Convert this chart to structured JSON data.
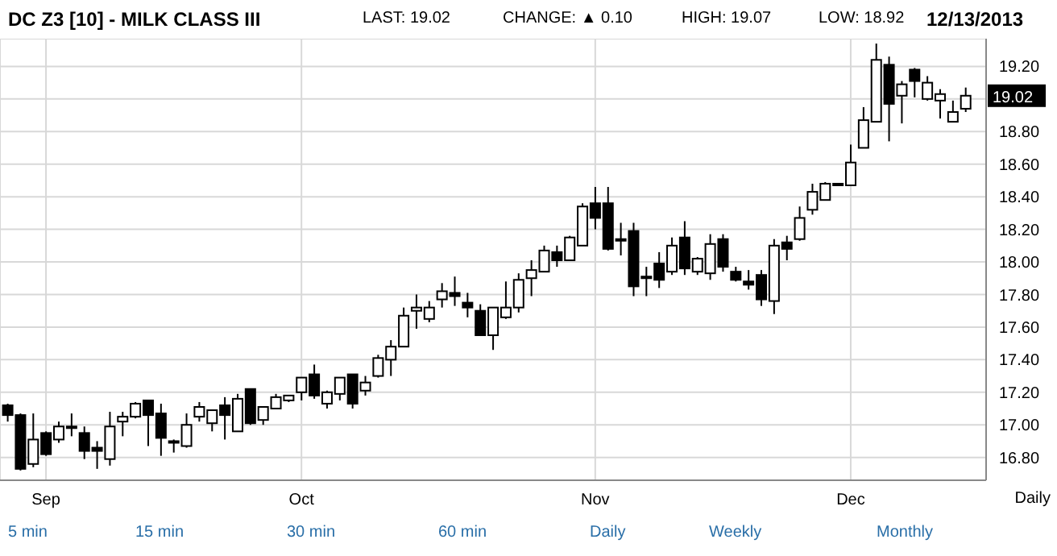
{
  "chart_data": {
    "type": "candlestick",
    "title": "DC Z3 [10] - MILK CLASS III",
    "xlabel": "Daily",
    "annotations": [
      "LAST: 19.02",
      "CHANGE: ▲ 0.10",
      "HIGH: 19.07",
      "LOW: 18.92",
      "12/13/2013",
      "19.02",
      "5 min",
      "15 min",
      "30 min",
      "60 min",
      "Daily",
      "Weekly",
      "Monthly"
    ],
    "categories": [
      null,
      null,
      null,
      "Sep",
      null,
      null,
      null,
      null,
      null,
      null,
      null,
      null,
      null,
      null,
      null,
      null,
      null,
      null,
      null,
      null,
      null,
      null,
      null,
      "Oct",
      null,
      null,
      null,
      null,
      null,
      null,
      null,
      null,
      null,
      null,
      null,
      null,
      null,
      null,
      null,
      null,
      null,
      null,
      null,
      null,
      null,
      null,
      "Nov",
      null,
      null,
      null,
      null,
      null,
      null,
      null,
      null,
      null,
      null,
      null,
      null,
      null,
      null,
      null,
      null,
      null,
      null,
      null,
      "Dec",
      null,
      null,
      null,
      null,
      null,
      null,
      null,
      null,
      null
    ],
    "ohlc": [
      [
        17.12,
        17.13,
        17.02,
        17.06
      ],
      [
        17.06,
        17.07,
        16.72,
        16.73
      ],
      [
        16.76,
        17.07,
        16.74,
        16.91
      ],
      [
        16.95,
        16.96,
        16.81,
        16.82
      ],
      [
        16.91,
        17.02,
        16.89,
        16.99
      ],
      [
        16.99,
        17.07,
        16.93,
        16.98
      ],
      [
        16.95,
        16.99,
        16.79,
        16.84
      ],
      [
        16.86,
        16.9,
        16.73,
        16.84
      ],
      [
        16.79,
        17.08,
        16.75,
        16.99
      ],
      [
        17.02,
        17.08,
        16.93,
        17.05
      ],
      [
        17.05,
        17.14,
        17.04,
        17.13
      ],
      [
        17.15,
        17.15,
        16.87,
        17.06
      ],
      [
        17.07,
        17.13,
        16.81,
        16.92
      ],
      [
        16.9,
        16.91,
        16.83,
        16.89
      ],
      [
        16.87,
        17.07,
        16.86,
        17.0
      ],
      [
        17.05,
        17.14,
        17.02,
        17.11
      ],
      [
        17.01,
        17.09,
        16.96,
        17.09
      ],
      [
        17.12,
        17.17,
        16.91,
        17.06
      ],
      [
        16.96,
        17.19,
        16.96,
        17.16
      ],
      [
        17.22,
        17.22,
        17.0,
        17.01
      ],
      [
        17.03,
        17.11,
        17.0,
        17.11
      ],
      [
        17.1,
        17.19,
        17.1,
        17.17
      ],
      [
        17.15,
        17.18,
        17.14,
        17.18
      ],
      [
        17.2,
        17.29,
        17.15,
        17.29
      ],
      [
        17.31,
        17.37,
        17.16,
        17.18
      ],
      [
        17.13,
        17.21,
        17.1,
        17.2
      ],
      [
        17.19,
        17.29,
        17.15,
        17.29
      ],
      [
        17.31,
        17.31,
        17.1,
        17.13
      ],
      [
        17.21,
        17.3,
        17.18,
        17.26
      ],
      [
        17.3,
        17.43,
        17.29,
        17.41
      ],
      [
        17.4,
        17.52,
        17.3,
        17.48
      ],
      [
        17.48,
        17.72,
        17.48,
        17.67
      ],
      [
        17.7,
        17.8,
        17.59,
        17.72
      ],
      [
        17.65,
        17.76,
        17.63,
        17.72
      ],
      [
        17.77,
        17.87,
        17.72,
        17.82
      ],
      [
        17.81,
        17.91,
        17.73,
        17.79
      ],
      [
        17.75,
        17.81,
        17.66,
        17.72
      ],
      [
        17.7,
        17.74,
        17.55,
        17.55
      ],
      [
        17.55,
        17.72,
        17.46,
        17.72
      ],
      [
        17.66,
        17.88,
        17.65,
        17.72
      ],
      [
        17.72,
        17.93,
        17.69,
        17.89
      ],
      [
        17.9,
        18.01,
        17.79,
        17.95
      ],
      [
        17.94,
        18.1,
        17.94,
        18.07
      ],
      [
        18.06,
        18.1,
        17.97,
        18.01
      ],
      [
        18.01,
        18.16,
        18.01,
        18.15
      ],
      [
        18.1,
        18.36,
        18.1,
        18.34
      ],
      [
        18.36,
        18.46,
        18.2,
        18.27
      ],
      [
        18.36,
        18.46,
        18.07,
        18.08
      ],
      [
        18.14,
        18.24,
        18.04,
        18.13
      ],
      [
        18.19,
        18.24,
        17.79,
        17.85
      ],
      [
        17.91,
        17.97,
        17.79,
        17.9
      ],
      [
        17.99,
        18.06,
        17.84,
        17.89
      ],
      [
        17.94,
        18.15,
        17.92,
        18.1
      ],
      [
        18.15,
        18.25,
        17.92,
        17.96
      ],
      [
        17.94,
        18.03,
        17.92,
        18.02
      ],
      [
        17.93,
        18.17,
        17.89,
        18.11
      ],
      [
        18.14,
        18.17,
        17.94,
        17.97
      ],
      [
        17.94,
        17.97,
        17.88,
        17.89
      ],
      [
        17.88,
        17.95,
        17.83,
        17.86
      ],
      [
        17.92,
        17.95,
        17.73,
        17.77
      ],
      [
        17.76,
        18.14,
        17.68,
        18.1
      ],
      [
        18.12,
        18.16,
        18.01,
        18.08
      ],
      [
        18.14,
        18.34,
        18.13,
        18.27
      ],
      [
        18.32,
        18.48,
        18.29,
        18.43
      ],
      [
        18.38,
        18.49,
        18.38,
        18.48
      ],
      [
        18.48,
        18.48,
        18.47,
        18.47
      ],
      [
        18.47,
        18.72,
        18.47,
        18.61
      ],
      [
        18.7,
        18.95,
        18.7,
        18.87
      ],
      [
        18.86,
        19.34,
        18.86,
        19.24
      ],
      [
        19.21,
        19.26,
        18.74,
        18.97
      ],
      [
        19.02,
        19.11,
        18.85,
        19.09
      ],
      [
        19.18,
        19.19,
        19.01,
        19.11
      ],
      [
        19.0,
        19.14,
        18.99,
        19.1
      ],
      [
        18.99,
        19.06,
        18.88,
        19.03
      ],
      [
        18.86,
        18.99,
        18.86,
        18.92
      ],
      [
        18.94,
        19.07,
        18.92,
        19.02
      ]
    ],
    "color": "#000000",
    "ylim": [
      16.66,
      19.37
    ],
    "yticks": [
      {
        "value": 16.8,
        "label": "16.80"
      },
      {
        "value": 17.0,
        "label": "17.00"
      },
      {
        "value": 17.2,
        "label": "17.20"
      },
      {
        "value": 17.4,
        "label": "17.40"
      },
      {
        "value": 17.6,
        "label": "17.60"
      },
      {
        "value": 17.8,
        "label": "17.80"
      },
      {
        "value": 18.0,
        "label": "18.00"
      },
      {
        "value": 18.2,
        "label": "18.20"
      },
      {
        "value": 18.4,
        "label": "18.40"
      },
      {
        "value": 18.6,
        "label": "18.60"
      },
      {
        "value": 18.8,
        "label": "18.80"
      },
      {
        "value": 19.0,
        "label": null
      },
      {
        "value": 19.2,
        "label": "19.20"
      }
    ],
    "grid": true
  }
}
